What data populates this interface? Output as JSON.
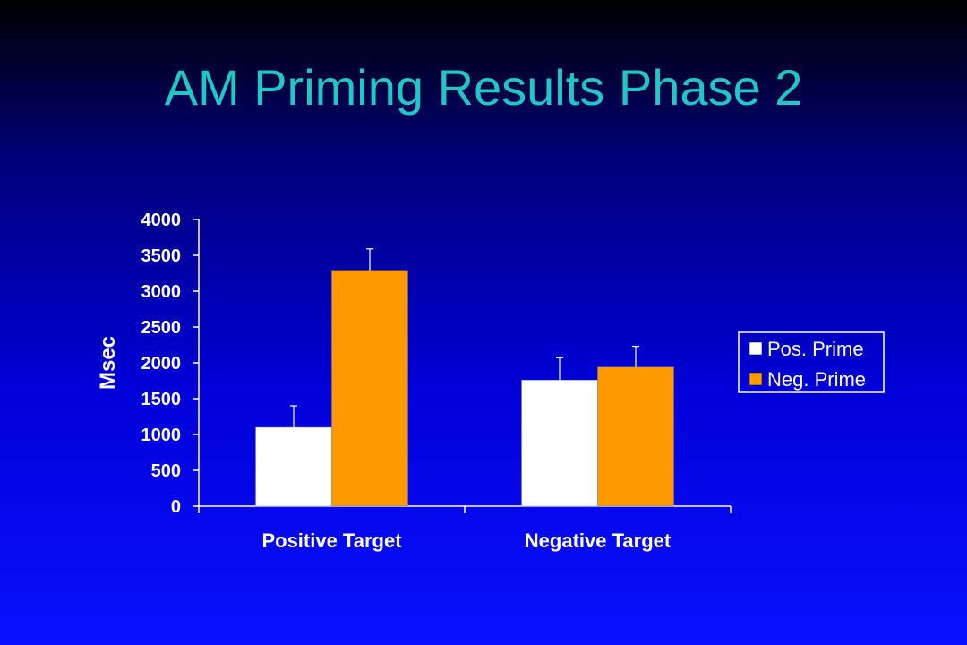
{
  "slide": {
    "title": "AM Priming Results Phase 2"
  },
  "colors": {
    "title": "#1ec8c8",
    "pos_prime": "#ffffff",
    "neg_prime": "#ff9900",
    "axis": "#ffffff",
    "legend_border": "#ffffff"
  },
  "chart_data": {
    "type": "bar",
    "title": "",
    "xlabel": "",
    "ylabel": "Msec",
    "categories": [
      "Positive Target",
      "Negative Target"
    ],
    "series": [
      {
        "name": "Pos. Prime",
        "values": [
          1100,
          1760
        ],
        "error": [
          300,
          310
        ],
        "color": "#ffffff"
      },
      {
        "name": "Neg. Prime",
        "values": [
          3290,
          1940
        ],
        "error": [
          300,
          290
        ],
        "color": "#ff9900"
      }
    ],
    "ylim": [
      0,
      4000
    ],
    "yticks": [
      "0",
      "500",
      "1000",
      "1500",
      "2000",
      "2500",
      "3000",
      "3500",
      "4000"
    ],
    "grid": false,
    "legend_position": "right"
  }
}
